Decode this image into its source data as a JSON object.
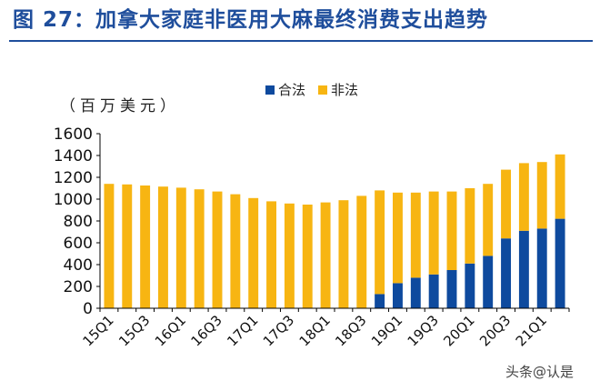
{
  "figure_title": "图 27：加拿大家庭非医用大麻最终消费支出趋势",
  "watermark": "头条@认是",
  "colors": {
    "title": "#1F4E9C",
    "legal": "#0E4A9E",
    "illegal": "#F7B512",
    "axis": "#000000"
  },
  "chart_data": {
    "type": "bar",
    "stacked": true,
    "title": "",
    "unit_label": "（百万美元）",
    "xlabel": "",
    "ylabel": "（百万美元）",
    "ylim": [
      0,
      1600
    ],
    "yticks": [
      0,
      200,
      400,
      600,
      800,
      1000,
      1200,
      1400,
      1600
    ],
    "legend_position": "top-center",
    "categories": [
      "15Q1",
      "15Q2",
      "15Q3",
      "15Q4",
      "16Q1",
      "16Q2",
      "16Q3",
      "16Q4",
      "17Q1",
      "17Q2",
      "17Q3",
      "17Q4",
      "18Q1",
      "18Q2",
      "18Q3",
      "18Q4",
      "19Q1",
      "19Q2",
      "19Q3",
      "19Q4",
      "20Q1",
      "20Q2",
      "20Q3",
      "20Q4",
      "21Q1",
      "21Q2"
    ],
    "xtick_labels": [
      "15Q1",
      "15Q3",
      "16Q1",
      "16Q3",
      "17Q1",
      "17Q3",
      "18Q1",
      "18Q3",
      "19Q1",
      "19Q3",
      "20Q1",
      "20Q3",
      "21Q1"
    ],
    "series": [
      {
        "name": "合法",
        "values": [
          0,
          0,
          0,
          0,
          0,
          0,
          0,
          0,
          0,
          0,
          0,
          0,
          0,
          0,
          0,
          130,
          230,
          280,
          310,
          350,
          410,
          480,
          640,
          710,
          730,
          820
        ]
      },
      {
        "name": "非法",
        "values": [
          1140,
          1135,
          1125,
          1115,
          1105,
          1090,
          1070,
          1045,
          1010,
          980,
          960,
          950,
          970,
          990,
          1030,
          950,
          830,
          780,
          760,
          720,
          690,
          660,
          630,
          620,
          610,
          590
        ]
      }
    ]
  }
}
